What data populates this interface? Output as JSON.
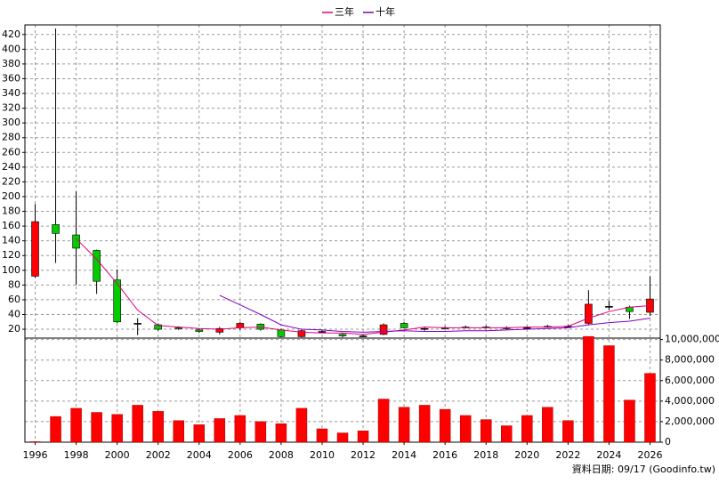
{
  "chart_data": [
    {
      "type": "candlestick",
      "x": [
        1996,
        1997,
        1998,
        1999,
        2000,
        2001,
        2002,
        2003,
        2004,
        2005,
        2006,
        2007,
        2008,
        2009,
        2010,
        2011,
        2012,
        2013,
        2014,
        2015,
        2016,
        2017,
        2018,
        2019,
        2020,
        2021,
        2022,
        2023,
        2024,
        2025,
        2026
      ],
      "open": [
        92,
        162,
        148,
        127,
        87,
        28,
        26,
        22,
        19,
        16,
        22,
        27,
        19,
        10,
        17,
        13,
        11,
        13,
        28,
        21,
        22,
        23,
        23,
        22,
        22,
        24,
        24,
        28,
        51,
        50,
        43
      ],
      "high": [
        190,
        428,
        207,
        128,
        101,
        35,
        28,
        24,
        21,
        23,
        30,
        28,
        21,
        20,
        19,
        15,
        13,
        28,
        30,
        23,
        24,
        25,
        25,
        24,
        24,
        26,
        26,
        73,
        59,
        52,
        92
      ],
      "low": [
        90,
        110,
        80,
        68,
        28,
        12,
        18,
        19,
        15,
        13,
        19,
        18,
        9,
        9,
        15,
        9,
        10,
        12,
        21,
        18,
        20,
        21,
        21,
        20,
        20,
        22,
        22,
        26,
        46,
        34,
        38
      ],
      "close": [
        166,
        150,
        130,
        85,
        30,
        28,
        20,
        21,
        17,
        21,
        28,
        20,
        10,
        18,
        17,
        11,
        11,
        26,
        22,
        21,
        22,
        23,
        23,
        22,
        22,
        24,
        24,
        54,
        51,
        44,
        61
      ],
      "up_color": "#ff0000",
      "down_color": "#00cc00",
      "flat_color": "#000000",
      "series": [
        {
          "name": "三年",
          "color": "#e0007a",
          "values": [
            null,
            null,
            143,
            115,
            82,
            46,
            25,
            23,
            21,
            20,
            22,
            23,
            19,
            16,
            15,
            15,
            13,
            16,
            19,
            23,
            22,
            22,
            22,
            22,
            23,
            23,
            24,
            35,
            44,
            50,
            52
          ]
        },
        {
          "name": "十年",
          "color": "#8000c0",
          "values": [
            null,
            null,
            null,
            null,
            null,
            null,
            null,
            null,
            null,
            66,
            53,
            40,
            26,
            20,
            19,
            17,
            16,
            17,
            18,
            17,
            17,
            18,
            18,
            19,
            20,
            21,
            22,
            26,
            29,
            31,
            35
          ]
        }
      ],
      "xlim": [
        1995.5,
        2026.5
      ],
      "ylim": [
        8,
        433
      ],
      "yticks": [
        20,
        40,
        60,
        80,
        100,
        120,
        140,
        160,
        180,
        200,
        220,
        240,
        260,
        280,
        300,
        320,
        340,
        360,
        380,
        400,
        420
      ],
      "grid": true
    },
    {
      "type": "bar",
      "x": [
        1996,
        1997,
        1998,
        1999,
        2000,
        2001,
        2002,
        2003,
        2004,
        2005,
        2006,
        2007,
        2008,
        2009,
        2010,
        2011,
        2012,
        2013,
        2014,
        2015,
        2016,
        2017,
        2018,
        2019,
        2020,
        2021,
        2022,
        2023,
        2024,
        2025,
        2026
      ],
      "values": [
        50000,
        2500000,
        3300000,
        2900000,
        2700000,
        3600000,
        3000000,
        2100000,
        1700000,
        2300000,
        2600000,
        2000000,
        1800000,
        3300000,
        1300000,
        900000,
        1100000,
        4200000,
        3400000,
        3600000,
        3200000,
        2600000,
        2200000,
        1600000,
        2600000,
        3400000,
        2100000,
        10300000,
        9400000,
        4100000,
        6700000
      ],
      "color": "#ff0000",
      "xlim": [
        1995.5,
        2026.5
      ],
      "xticks": [
        1996,
        1998,
        2000,
        2002,
        2004,
        2006,
        2008,
        2010,
        2012,
        2014,
        2016,
        2018,
        2020,
        2022,
        2024,
        2026
      ],
      "ylim": [
        0,
        10140000
      ],
      "yticks": [
        {
          "value": 0,
          "label": "0"
        },
        {
          "value": 2000000,
          "label": "2,000,000"
        },
        {
          "value": 4000000,
          "label": "4,000,000"
        },
        {
          "value": 6000000,
          "label": "6,000,000"
        },
        {
          "value": 8000000,
          "label": "8,000,000"
        },
        {
          "value": 10000000,
          "label": "10,000,000"
        }
      ],
      "grid": true
    }
  ],
  "source": "資料日期: 09/17  (Goodinfo.tw)"
}
